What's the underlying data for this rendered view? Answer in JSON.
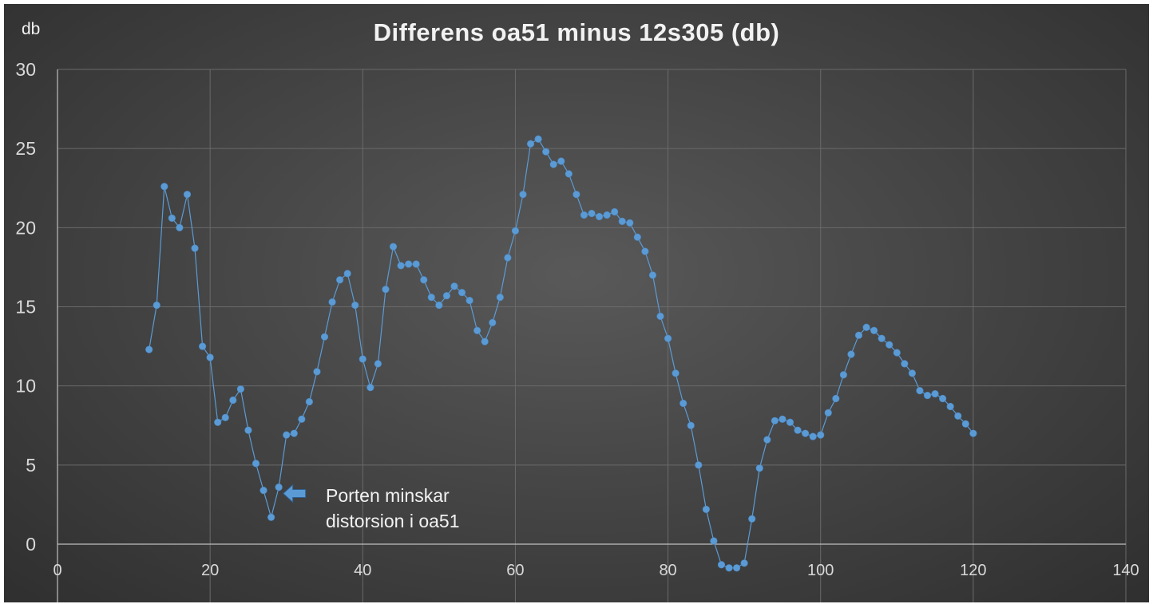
{
  "chart_data": {
    "type": "scatter",
    "title": "Differens oa51 minus 12s305 (db)",
    "ylabel": "db",
    "xlabel": "",
    "xlim": [
      0,
      140
    ],
    "ylim": [
      0,
      30
    ],
    "xticks": [
      0,
      20,
      40,
      60,
      80,
      100,
      120,
      140
    ],
    "yticks": [
      0,
      5,
      10,
      15,
      20,
      25,
      30
    ],
    "grid": true,
    "legend": "none",
    "series": [
      {
        "color": "#5b9bd5",
        "x": [
          12,
          13,
          14,
          15,
          16,
          17,
          18,
          19,
          20,
          21,
          22,
          23,
          24,
          25,
          26,
          27,
          28,
          29,
          30,
          31,
          32,
          33,
          34,
          35,
          36,
          37,
          38,
          39,
          40,
          41,
          42,
          43,
          44,
          45,
          46,
          47,
          48,
          49,
          50,
          51,
          52,
          53,
          54,
          55,
          56,
          57,
          58,
          59,
          60,
          61,
          62,
          63,
          64,
          65,
          66,
          67,
          68,
          69,
          70,
          71,
          72,
          73,
          74,
          75,
          76,
          77,
          78,
          79,
          80,
          81,
          82,
          83,
          84,
          85,
          86,
          87,
          88,
          89,
          90,
          91,
          92,
          93,
          94,
          95,
          96,
          97,
          98,
          99,
          100,
          101,
          102,
          103,
          104,
          105,
          106,
          107,
          108,
          109,
          110,
          111,
          112,
          113,
          114,
          115,
          116,
          117,
          118,
          119,
          120
        ],
        "y": [
          12.3,
          15.1,
          22.6,
          20.6,
          20.0,
          22.1,
          18.7,
          12.5,
          11.8,
          7.7,
          8.0,
          9.1,
          9.8,
          7.2,
          5.1,
          3.4,
          1.7,
          3.6,
          6.9,
          7.0,
          7.9,
          9.0,
          10.9,
          13.1,
          15.3,
          16.7,
          17.1,
          15.1,
          11.7,
          9.9,
          11.4,
          16.1,
          18.8,
          17.6,
          17.7,
          17.7,
          16.7,
          15.6,
          15.1,
          15.7,
          16.3,
          15.9,
          15.4,
          13.5,
          12.8,
          14.0,
          15.6,
          18.1,
          19.8,
          22.1,
          25.3,
          25.6,
          24.8,
          24.0,
          24.2,
          23.4,
          22.1,
          20.8,
          20.9,
          20.7,
          20.8,
          21.0,
          20.4,
          20.3,
          19.4,
          18.5,
          17.0,
          14.4,
          13.0,
          10.8,
          8.9,
          7.5,
          5.0,
          2.2,
          0.2,
          -1.3,
          -1.5,
          -1.5,
          -1.2,
          1.6,
          4.8,
          6.6,
          7.8,
          7.9,
          7.7,
          7.2,
          7.0,
          6.8,
          6.9,
          8.3,
          9.2,
          10.7,
          12.0,
          13.2,
          13.7,
          13.5,
          13.0,
          12.6,
          12.1,
          11.4,
          10.8,
          9.7,
          9.4,
          9.5,
          9.2,
          8.7,
          8.1,
          7.6,
          7.0
        ]
      }
    ],
    "annotations": [
      {
        "x": 30,
        "y": 3.2,
        "lines": [
          "Porten minskar",
          "distorsion i oa51"
        ]
      }
    ]
  }
}
